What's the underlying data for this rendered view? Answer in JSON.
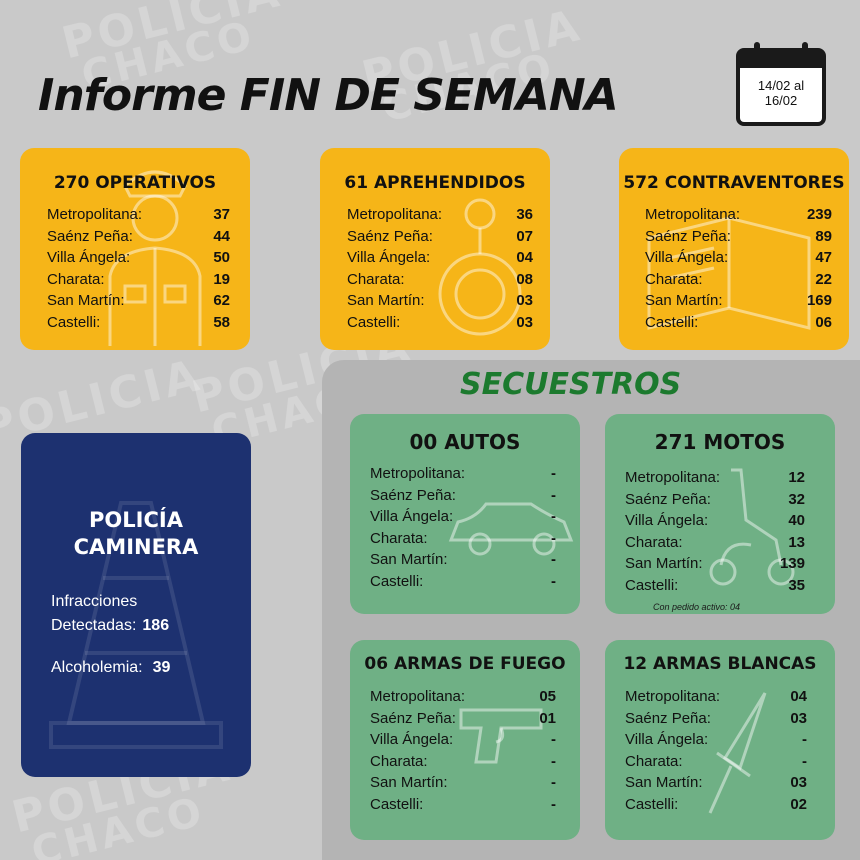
{
  "watermark": [
    "POLICIA",
    "CHACO"
  ],
  "header": {
    "title_part1": "Informe",
    "title_part2": "FIN DE SEMANA",
    "date_line1": "14/02 al",
    "date_line2": "16/02"
  },
  "summary_cards": [
    {
      "title": "270 OPERATIVOS",
      "rows": [
        {
          "label": "Metropolitana:",
          "value": "37"
        },
        {
          "label": "Saénz Peña:",
          "value": "44"
        },
        {
          "label": "Villa Ángela:",
          "value": "50"
        },
        {
          "label": "Charata:",
          "value": "19"
        },
        {
          "label": "San Martín:",
          "value": "62"
        },
        {
          "label": "Castelli:",
          "value": "58"
        }
      ]
    },
    {
      "title": "61 APREHENDIDOS",
      "rows": [
        {
          "label": "Metropolitana:",
          "value": "36"
        },
        {
          "label": "Saénz Peña:",
          "value": "07"
        },
        {
          "label": "Villa Ángela:",
          "value": "04"
        },
        {
          "label": "Charata:",
          "value": "08"
        },
        {
          "label": "San Martín:",
          "value": "03"
        },
        {
          "label": "Castelli:",
          "value": "03"
        }
      ]
    },
    {
      "title": "572 CONTRAVENTORES",
      "rows": [
        {
          "label": "Metropolitana:",
          "value": "239"
        },
        {
          "label": "Saénz Peña:",
          "value": "89"
        },
        {
          "label": "Villa Ángela:",
          "value": "47"
        },
        {
          "label": "Charata:",
          "value": "22"
        },
        {
          "label": "San Martín:",
          "value": "169"
        },
        {
          "label": "Castelli:",
          "value": "06"
        }
      ]
    }
  ],
  "caminera": {
    "title_line1": "POLICÍA",
    "title_line2": "CAMINERA",
    "infracciones_label1": "Infracciones",
    "infracciones_label2": "Detectadas:",
    "infracciones_value": "186",
    "alcoholemia_label": "Alcoholemia:",
    "alcoholemia_value": "39"
  },
  "secuestros": {
    "title": "SECUESTROS",
    "cards": [
      {
        "title": "00 AUTOS",
        "rows": [
          {
            "label": "Metropolitana:",
            "value": "-"
          },
          {
            "label": "Saénz Peña:",
            "value": "-"
          },
          {
            "label": "Villa Ángela:",
            "value": "-"
          },
          {
            "label": "Charata:",
            "value": "-"
          },
          {
            "label": "San Martín:",
            "value": "-"
          },
          {
            "label": "Castelli:",
            "value": "-"
          }
        ]
      },
      {
        "title": "271 MOTOS",
        "rows": [
          {
            "label": "Metropolitana:",
            "value": "12"
          },
          {
            "label": "Saénz Peña:",
            "value": "32"
          },
          {
            "label": "Villa Ángela:",
            "value": "40"
          },
          {
            "label": "Charata:",
            "value": "13"
          },
          {
            "label": "San Martín:",
            "value": "139"
          },
          {
            "label": "Castelli:",
            "value": "35"
          }
        ],
        "note": "Con pedido activo: 04"
      },
      {
        "title": "06 ARMAS DE FUEGO",
        "rows": [
          {
            "label": "Metropolitana:",
            "value": "05"
          },
          {
            "label": "Saénz Peña:",
            "value": "01"
          },
          {
            "label": "Villa Ángela:",
            "value": "-"
          },
          {
            "label": "Charata:",
            "value": "-"
          },
          {
            "label": "San Martín:",
            "value": "-"
          },
          {
            "label": "Castelli:",
            "value": "-"
          }
        ]
      },
      {
        "title": "12 ARMAS BLANCAS",
        "rows": [
          {
            "label": "Metropolitana:",
            "value": "04"
          },
          {
            "label": "Saénz Peña:",
            "value": "03"
          },
          {
            "label": "Villa Ángela:",
            "value": "-"
          },
          {
            "label": "Charata:",
            "value": "-"
          },
          {
            "label": "San Martín:",
            "value": "03"
          },
          {
            "label": "Castelli:",
            "value": "02"
          }
        ]
      }
    ]
  },
  "colors": {
    "background": "#c9c9c9",
    "yellow_card": "#f6b518",
    "green_card": "#6fb085",
    "navy_card": "#1d3170",
    "secuestros_title": "#1c7a2e"
  },
  "icons": [
    "police-officer-icon",
    "handcuffs-icon",
    "ticket-book-icon",
    "car-icon",
    "scooter-icon",
    "pistol-icon",
    "knife-icon",
    "traffic-cone-icon",
    "calendar-icon"
  ]
}
